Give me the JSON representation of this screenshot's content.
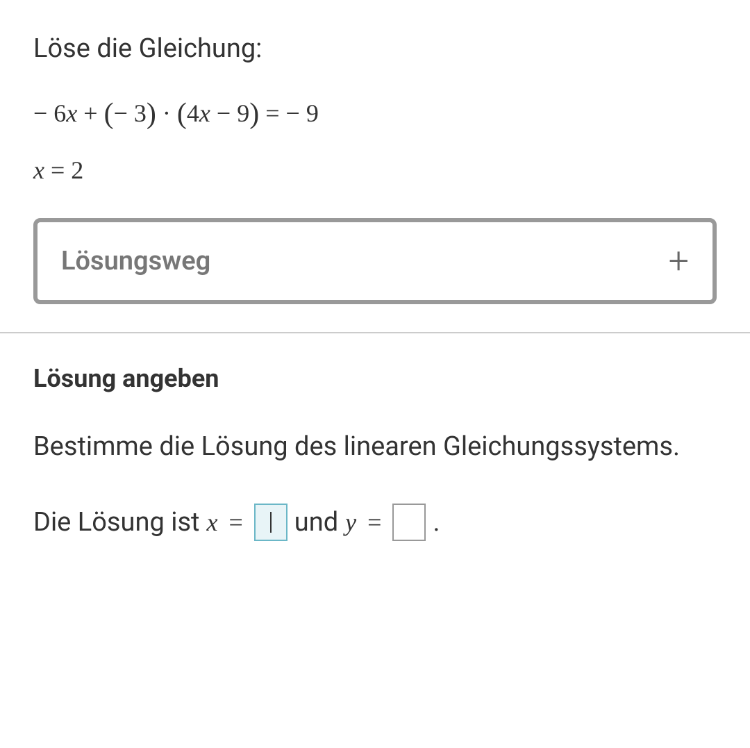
{
  "top": {
    "instruction": "Löse die Gleichung:",
    "equation": {
      "term1_coef": "− 6",
      "term1_var": "x",
      "plus": " + ",
      "factor_open": "(",
      "factor_neg": "− 3",
      "factor_close": ")",
      "dot": " · ",
      "paren_open": "(",
      "inner_coef": "4",
      "inner_var": "x",
      "inner_minus": " − 9",
      "paren_close": ")",
      "eq": " = ",
      "rhs": "− 9"
    },
    "solution_var": "x",
    "solution_eq": " = ",
    "solution_val": "2",
    "accordion_label": "Lösungsweg"
  },
  "bottom": {
    "subheading": "Lösung angeben",
    "body": "Bestimme die Lösung des linearen Gleichungssystems.",
    "answer_prefix": "Die Lösung ist ",
    "var_x": "x",
    "eq": "=",
    "and": " und ",
    "var_y": "y",
    "period": "."
  },
  "style": {
    "accordion_border": "#999999",
    "accent_input_border": "#6bb7c7",
    "accent_input_bg": "#e8f4f7",
    "text_color": "#333333",
    "muted_color": "#777777"
  }
}
